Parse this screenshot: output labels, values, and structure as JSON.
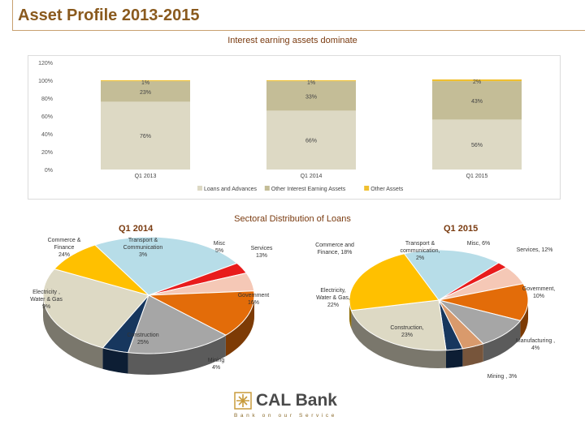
{
  "header": {
    "title": "Asset Profile 2013-2015",
    "subtitle": "Interest earning assets dominate"
  },
  "chart_data": [
    {
      "type": "bar",
      "stacked": true,
      "categories": [
        "Q1 2013",
        "Q1 2014",
        "Q1 2015"
      ],
      "series": [
        {
          "name": "Loans and Advances",
          "values": [
            76,
            66,
            56
          ],
          "labels": [
            "76%",
            "66%",
            "56%"
          ],
          "color": "#ddd9c4"
        },
        {
          "name": "Other Interest Earning Assets",
          "values": [
            23,
            33,
            43
          ],
          "labels": [
            "23%",
            "33%",
            "43%"
          ],
          "color": "#c4bd97"
        },
        {
          "name": "Other Assets",
          "values": [
            1,
            1,
            2
          ],
          "labels": [
            "1%",
            "1%",
            "2%"
          ],
          "color": "#f0c030"
        }
      ],
      "yticks": [
        "0%",
        "20%",
        "40%",
        "60%",
        "80%",
        "100%",
        "120%"
      ],
      "ylim": [
        0,
        120
      ],
      "legend_position": "bottom"
    },
    {
      "type": "pie",
      "title": "Q1 2014",
      "slices": [
        {
          "label": "Commerce & Finance",
          "lines": [
            "Commerce &",
            "Finance",
            "24%"
          ],
          "value": 24,
          "color": "#b7dde8"
        },
        {
          "label": "Transport & Communication",
          "lines": [
            "Transport &",
            "Communication",
            "3%"
          ],
          "value": 3,
          "color": "#e81c1c"
        },
        {
          "label": "Misc",
          "lines": [
            "Misc",
            "5%"
          ],
          "value": 5,
          "color": "#f5c8b6"
        },
        {
          "label": "Services",
          "lines": [
            "Services",
            "13%"
          ],
          "value": 13,
          "color": "#e36c09"
        },
        {
          "label": "Government",
          "lines": [
            "Government",
            "16%"
          ],
          "value": 16,
          "color": "#a6a6a6"
        },
        {
          "label": "Mining",
          "lines": [
            "Mining",
            "4%"
          ],
          "value": 4,
          "color": "#17375e"
        },
        {
          "label": "Construction",
          "lines": [
            "Construction",
            "25%"
          ],
          "value": 25,
          "color": "#ddd9c4"
        },
        {
          "label": "Electricity, Water & Gas",
          "lines": [
            "Electricity ,",
            "Water & Gas",
            "9%"
          ],
          "value": 9,
          "color": "#ffc000"
        }
      ]
    },
    {
      "type": "pie",
      "title": "Q1 2015",
      "slices": [
        {
          "label": "Commerce and Finance",
          "lines": [
            "Commerce and",
            "Finance, 18%"
          ],
          "value": 18,
          "color": "#b7dde8"
        },
        {
          "label": "Transport & communication",
          "lines": [
            "Transport &",
            "communication,",
            "2%"
          ],
          "value": 2,
          "color": "#e81c1c"
        },
        {
          "label": "Misc",
          "lines": [
            "Misc, 6%"
          ],
          "value": 6,
          "color": "#f5c8b6"
        },
        {
          "label": "Services",
          "lines": [
            "Services, 12%"
          ],
          "value": 12,
          "color": "#e36c09"
        },
        {
          "label": "Government",
          "lines": [
            "Government,",
            "10%"
          ],
          "value": 10,
          "color": "#a6a6a6"
        },
        {
          "label": "Manufacturing",
          "lines": [
            "Manufacturing ,",
            "4%"
          ],
          "value": 4,
          "color": "#d99a6c"
        },
        {
          "label": "Mining",
          "lines": [
            "Mining , 3%"
          ],
          "value": 3,
          "color": "#17375e"
        },
        {
          "label": "Construction",
          "lines": [
            "Construction,",
            "23%"
          ],
          "value": 23,
          "color": "#ddd9c4"
        },
        {
          "label": "Electricity, Water & Gas",
          "lines": [
            "Electricity,",
            "Water & Gas,",
            "22%"
          ],
          "value": 22,
          "color": "#ffc000"
        }
      ]
    }
  ],
  "pies_title": "Sectoral Distribution of Loans",
  "logo": {
    "name": "CAL Bank",
    "tagline": "Bank on our Service"
  }
}
